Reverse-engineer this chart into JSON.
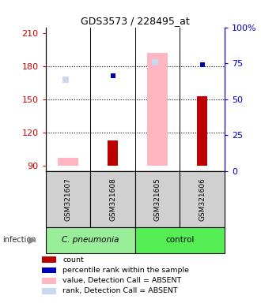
{
  "title": "GDS3573 / 228495_at",
  "samples": [
    "GSM321607",
    "GSM321608",
    "GSM321605",
    "GSM321606"
  ],
  "ylim_left": [
    85,
    215
  ],
  "ylim_right": [
    0,
    100
  ],
  "yticks_left": [
    90,
    120,
    150,
    180,
    210
  ],
  "yticks_right": [
    0,
    25,
    50,
    75,
    100
  ],
  "ytick_labels_right": [
    "0",
    "25",
    "50",
    "75",
    "100%"
  ],
  "bar_bottom": 90,
  "count_bars": {
    "GSM321607": null,
    "GSM321608": 113,
    "GSM321605": null,
    "GSM321606": 153
  },
  "value_absent_bars": {
    "GSM321607": 97,
    "GSM321608": null,
    "GSM321605": 192,
    "GSM321606": null
  },
  "rank_absent_dots": {
    "GSM321607": 168,
    "GSM321608": null,
    "GSM321605": 183,
    "GSM321606": null
  },
  "percentile_dots": {
    "GSM321607": null,
    "GSM321608": 171,
    "GSM321605": null,
    "GSM321606": 181
  },
  "colors": {
    "count": "#BB0000",
    "percentile": "#0000BB",
    "value_absent": "#FFB6C1",
    "rank_absent": "#C8D8EE"
  },
  "left_yaxis_color": "#CC0000",
  "right_yaxis_color": "#0000CC",
  "sample_box_color": "#D0D0D0",
  "group_spans": [
    {
      "label": "C. pneumonia",
      "start": 0,
      "end": 1,
      "color": "#99EE99",
      "italic": true
    },
    {
      "label": "control",
      "start": 2,
      "end": 3,
      "color": "#55EE55",
      "italic": false
    }
  ],
  "legend_items": [
    {
      "color": "#BB0000",
      "label": "count"
    },
    {
      "color": "#0000BB",
      "label": "percentile rank within the sample"
    },
    {
      "color": "#FFB6C1",
      "label": "value, Detection Call = ABSENT"
    },
    {
      "color": "#C8D8EE",
      "label": "rank, Detection Call = ABSENT"
    }
  ],
  "infection_label": "infection",
  "infection_arrow": "▶"
}
